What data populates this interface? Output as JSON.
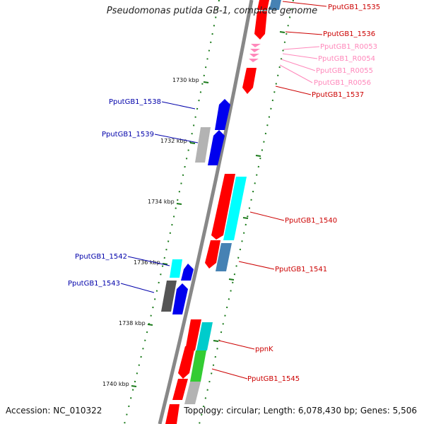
{
  "title": "Pseudomonas putida GB-1, complete genome",
  "footer": {
    "accession": "Accession: NC_010322",
    "summary": "Topology: circular; Length: 6,078,430 bp; Genes: 5,506"
  },
  "colors": {
    "forward_cds": "#ff0000",
    "reverse_cds": "#0000ee",
    "rna": "#ff88bb",
    "cyan": "#00ffff",
    "steel_blue": "#4682b4",
    "green": "#33cc33",
    "gray": "#b3b3b3",
    "dark_gray": "#555555",
    "backbone": "#888888",
    "tick": "#1a7a1a"
  },
  "scale_labels": [
    "1730 kbp",
    "1732 kbp",
    "1734 kbp",
    "1736 kbp",
    "1738 kbp",
    "1740 kbp"
  ],
  "right_labels": [
    {
      "text": "PputGB1_1535",
      "color": "#cc0000"
    },
    {
      "text": "PputGB1_1536",
      "color": "#cc0000"
    },
    {
      "text": "PputGB1_R0053",
      "color": "#ff88bb"
    },
    {
      "text": "PputGB1_R0054",
      "color": "#ff88bb"
    },
    {
      "text": "PputGB1_R0055",
      "color": "#ff88bb"
    },
    {
      "text": "PputGB1_R0056",
      "color": "#ff88bb"
    },
    {
      "text": "PputGB1_1537",
      "color": "#cc0000"
    },
    {
      "text": "PputGB1_1540",
      "color": "#cc0000"
    },
    {
      "text": "PputGB1_1541",
      "color": "#cc0000"
    },
    {
      "text": "ppnK",
      "color": "#cc0000"
    },
    {
      "text": "PputGB1_1545",
      "color": "#cc0000"
    }
  ],
  "left_labels": [
    {
      "text": "PputGB1_1538",
      "color": "#0000aa"
    },
    {
      "text": "PputGB1_1539",
      "color": "#0000aa"
    },
    {
      "text": "PputGB1_1542",
      "color": "#0000aa"
    },
    {
      "text": "PputGB1_1543",
      "color": "#0000aa"
    }
  ]
}
